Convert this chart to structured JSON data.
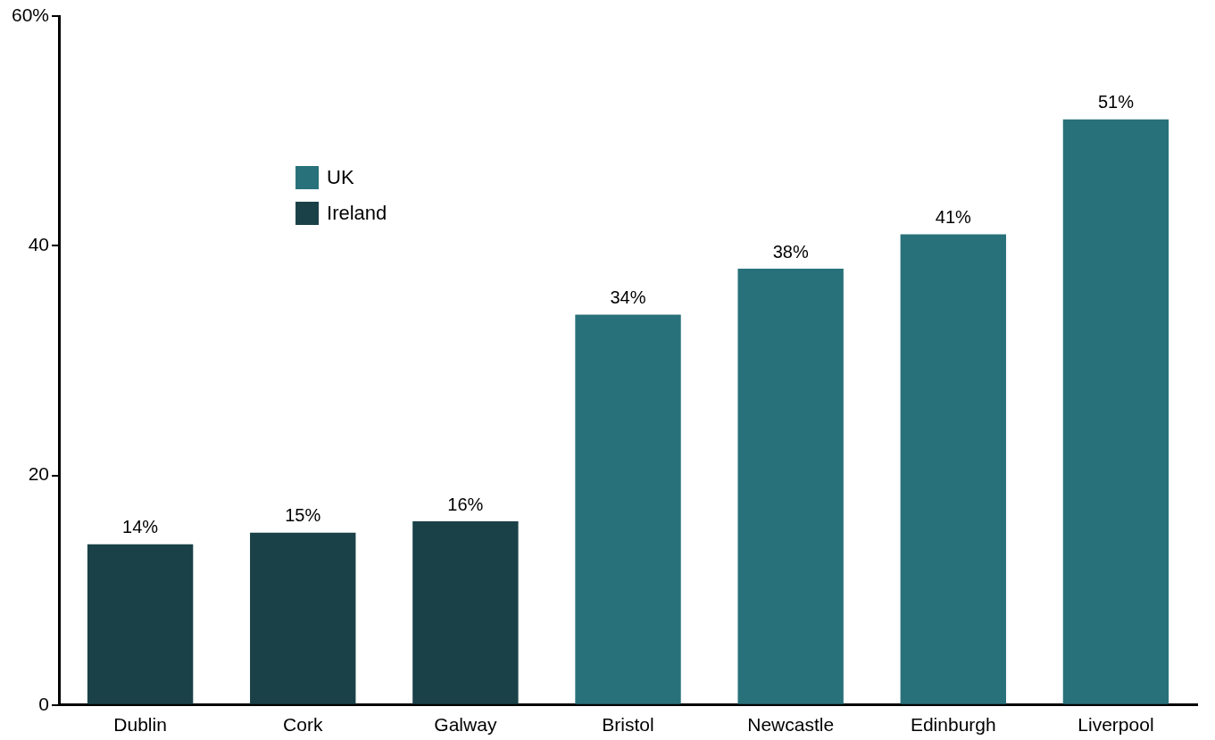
{
  "chart_data": {
    "type": "bar",
    "categories": [
      "Dublin",
      "Cork",
      "Galway",
      "Bristol",
      "Newcastle",
      "Edinburgh",
      "Liverpool"
    ],
    "series": [
      {
        "name": "UK",
        "color": "#28717a",
        "values": [
          null,
          null,
          null,
          34,
          38,
          41,
          51
        ],
        "value_labels": [
          null,
          null,
          null,
          "34%",
          "38%",
          "41%",
          "51%"
        ]
      },
      {
        "name": "Ireland",
        "color": "#1a4147",
        "values": [
          14,
          15,
          16,
          null,
          null,
          null,
          null
        ],
        "value_labels": [
          "14%",
          "15%",
          "16%",
          null,
          null,
          null,
          null
        ]
      }
    ],
    "ylim": [
      0,
      60
    ],
    "yticks": [
      0,
      20,
      40,
      {
        "value": 60,
        "label": "60%"
      }
    ],
    "grid": false,
    "legend": "top left"
  }
}
